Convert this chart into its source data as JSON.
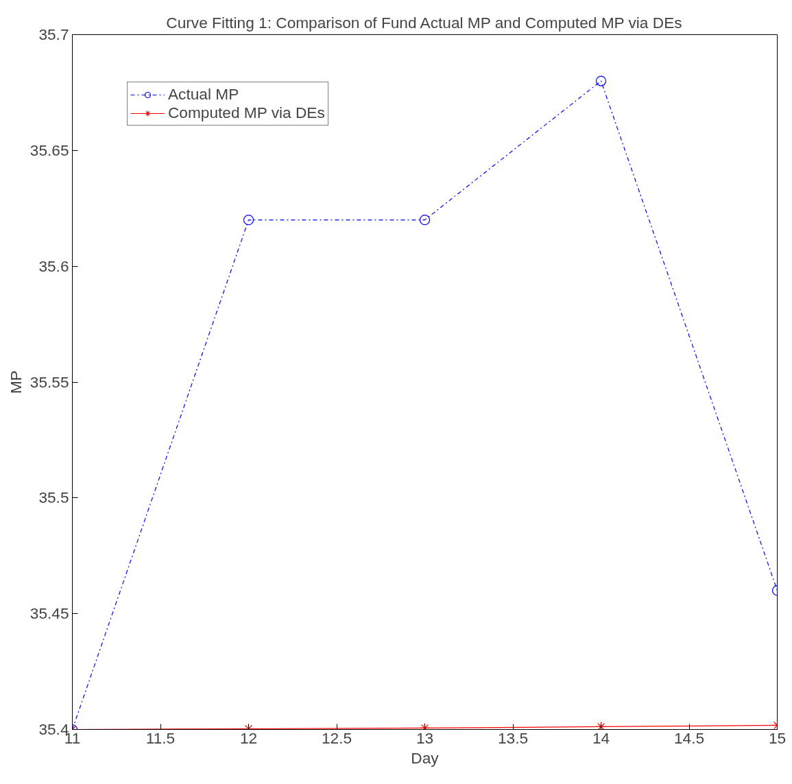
{
  "chart_data": {
    "type": "line",
    "title": "Curve Fitting 1: Comparison of Fund Actual MP and Computed MP via DEs",
    "xlabel": "Day",
    "ylabel": "MP",
    "x": [
      11,
      12,
      13,
      14,
      15
    ],
    "series": [
      {
        "name": "Actual MP",
        "color": "#0000ff",
        "values": [
          35.4,
          35.62,
          35.62,
          35.68,
          35.46
        ],
        "marker": "circle",
        "line_style": "dashdot"
      },
      {
        "name": "Computed MP via DEs",
        "color": "#ff0000",
        "values": [
          35.4,
          35.4003,
          35.4006,
          35.4012,
          35.4018
        ],
        "marker": "cross",
        "line_style": "solid"
      }
    ],
    "xlim": [
      11,
      15
    ],
    "xticks": [
      11,
      11.5,
      12,
      12.5,
      13,
      13.5,
      14,
      14.5,
      15
    ],
    "ylim": [
      35.4,
      35.7
    ],
    "yticks": [
      35.4,
      35.45,
      35.5,
      35.55,
      35.6,
      35.65,
      35.7
    ],
    "grid": false,
    "legend": "top left"
  }
}
